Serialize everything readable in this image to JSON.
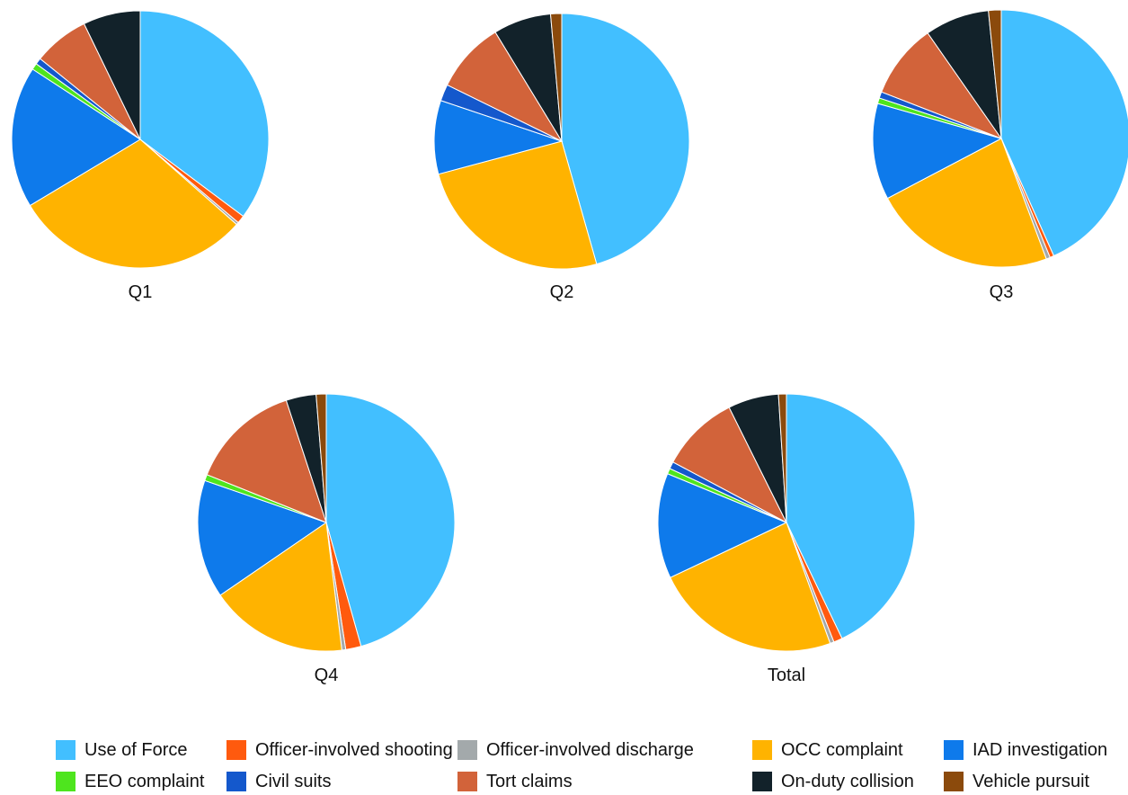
{
  "chart_data": {
    "type": "pie",
    "categories": [
      "Use of Force",
      "Officer-involved shooting",
      "Officer-involved discharge",
      "OCC complaint",
      "IAD investigation",
      "EEO complaint",
      "Civil suits",
      "Tort claims",
      "On-duty collision",
      "Vehicle pursuit"
    ],
    "colors": [
      "#42bfff",
      "#ff5a0e",
      "#a3a9ab",
      "#ffb300",
      "#0e7aeb",
      "#4ee51e",
      "#1458cc",
      "#d2633a",
      "#12222a",
      "#8b4a0c"
    ],
    "series": [
      {
        "name": "Q1",
        "values": [
          35.2,
          1.0,
          0.3,
          29.9,
          17.8,
          0.8,
          0.8,
          7.0,
          7.2,
          0.0
        ]
      },
      {
        "name": "Q2",
        "values": [
          45.5,
          0.0,
          0.0,
          25.2,
          9.3,
          0.0,
          2.1,
          9.0,
          7.3,
          1.4
        ]
      },
      {
        "name": "Q3",
        "values": [
          43.3,
          0.5,
          0.5,
          23.0,
          12.1,
          0.7,
          0.8,
          9.4,
          8.1,
          1.6
        ]
      },
      {
        "name": "Q4",
        "values": [
          47.0,
          2.0,
          0.5,
          17.9,
          15.3,
          0.8,
          0.0,
          14.3,
          3.9,
          1.3
        ]
      },
      {
        "name": "Total",
        "values": [
          43.1,
          1.1,
          0.5,
          23.6,
          13.3,
          0.7,
          0.9,
          9.9,
          6.4,
          1.0
        ]
      }
    ]
  }
}
